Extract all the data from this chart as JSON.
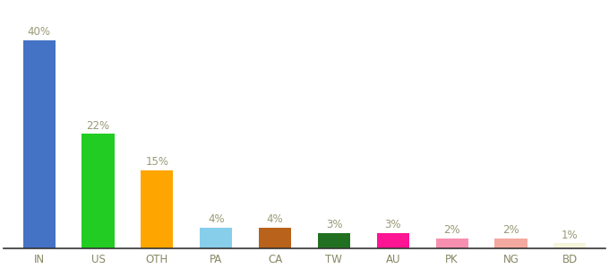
{
  "categories": [
    "IN",
    "US",
    "OTH",
    "PA",
    "CA",
    "TW",
    "AU",
    "PK",
    "NG",
    "BD"
  ],
  "values": [
    40,
    22,
    15,
    4,
    4,
    3,
    3,
    2,
    2,
    1
  ],
  "bar_colors": [
    "#4472C4",
    "#22CC22",
    "#FFA500",
    "#87CEEB",
    "#B8621B",
    "#217021",
    "#FF1493",
    "#F78FB1",
    "#F4A9A0",
    "#F5F5DC"
  ],
  "labels": [
    "40%",
    "22%",
    "15%",
    "4%",
    "4%",
    "3%",
    "3%",
    "2%",
    "2%",
    "1%"
  ],
  "ylim": [
    0,
    47
  ],
  "figsize": [
    6.8,
    3.0
  ],
  "dpi": 100,
  "label_color": "#999977",
  "label_fontsize": 8.5,
  "xtick_fontsize": 8.5,
  "xtick_color": "#888866",
  "bar_width": 0.55,
  "bg_color": "#ffffff",
  "bottom_spine_color": "#333333"
}
